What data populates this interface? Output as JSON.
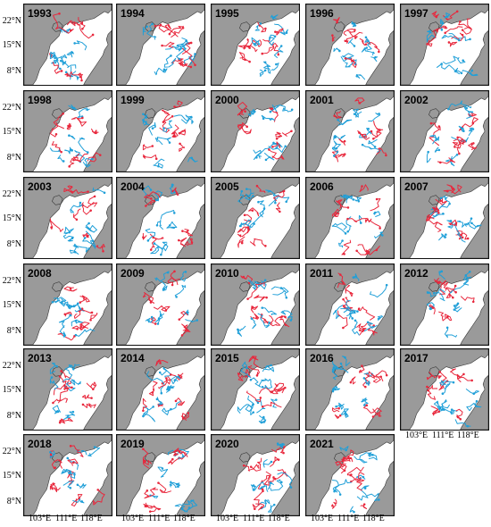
{
  "years": [
    "1993",
    "1994",
    "1995",
    "1996",
    "1997",
    "1998",
    "1999",
    "2000",
    "2001",
    "2002",
    "2003",
    "2004",
    "2005",
    "2006",
    "2007",
    "2008",
    "2009",
    "2010",
    "2011",
    "2012",
    "2013",
    "2014",
    "2015",
    "2016",
    "2017",
    "2018",
    "2019",
    "2020",
    "2021"
  ],
  "lat_labels": [
    "22°N",
    "15°N",
    "8°N"
  ],
  "lon_labels": [
    "103°E",
    "111°E",
    "118°E"
  ],
  "colors": {
    "land": "#9a9a9a",
    "sea": "#ffffff",
    "track_a": "#e8273c",
    "track_b": "#1f9fd8",
    "border": "#111111"
  }
}
